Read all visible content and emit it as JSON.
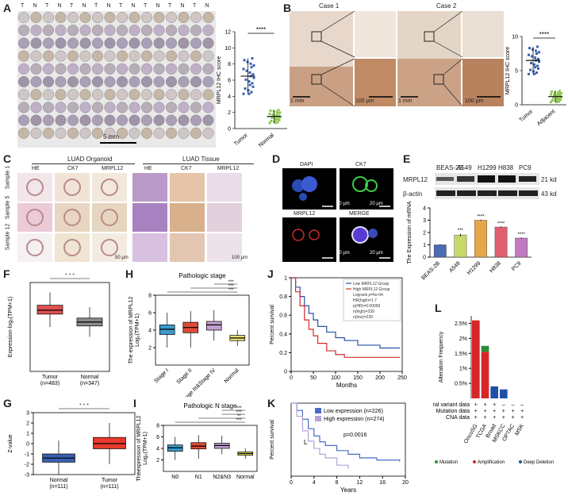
{
  "panel_letters": {
    "a": "A",
    "b": "B",
    "c": "C",
    "d": "D",
    "e": "E",
    "f": "F",
    "g": "G",
    "h": "H",
    "i": "I",
    "j": "J",
    "k": "K",
    "l": "L"
  },
  "panelA": {
    "tn_header": [
      "T",
      "N",
      "T",
      "N",
      "T",
      "N",
      "T",
      "N",
      "T",
      "N",
      "T",
      "N",
      "T",
      "N",
      "T",
      "N"
    ],
    "scale": "5 mm"
  },
  "panelB": {
    "case1": "Case 1",
    "case2": "Case 2",
    "scale_1mm": "1 mm",
    "scale_100um": "100 μm"
  },
  "panelC": {
    "group1": "LUAD Organoid",
    "group2": "LUAD Tissue",
    "cols": [
      "HE",
      "CK7",
      "MRPL12",
      "HE",
      "CK7",
      "MRPL12"
    ],
    "rows": [
      "Sample 1",
      "Sample 5",
      "Sample 12"
    ],
    "scale1": "50 μm",
    "scale2": "100 μm"
  },
  "panelD": {
    "dapi": "DAPI",
    "ck7": "CK7",
    "mrpl12": "MRPL12",
    "merge": "MERGE",
    "scale": "20 μm"
  },
  "panelE": {
    "cells": [
      "BEAS-2B",
      "A549",
      "H1299",
      "H838",
      "PC9"
    ],
    "row1": "MRPL12",
    "row2": "β-actin",
    "kd1": "21 kd",
    "kd2": "43 kd"
  },
  "panelL": {
    "rows": [
      "Structural variant data",
      "Mutation data",
      "CNA data"
    ],
    "legend_mutation": "Mutation",
    "legend_amp": "Amplification",
    "legend_del": "Deep Deletion",
    "colors": {
      "mutation": "#2e8b3a",
      "amp": "#d62728",
      "del": "#1f4fa8"
    }
  },
  "chart_data": [
    {
      "id": "A",
      "type": "scatter",
      "ylabel": "MRPL12 IHC score",
      "categories": [
        "Tumor",
        "Normal"
      ],
      "ylim": [
        0,
        12
      ],
      "yticks": [
        0,
        2,
        4,
        6,
        8,
        10,
        12
      ],
      "means": [
        6.5,
        1.5
      ],
      "sd": [
        2.2,
        0.8
      ],
      "sig": "****"
    },
    {
      "id": "B",
      "type": "scatter",
      "ylabel": "MRPL12 IHC score",
      "categories": [
        "Tumor",
        "Adjacent"
      ],
      "ylim": [
        0,
        10
      ],
      "yticks": [
        0,
        5,
        10
      ],
      "means": [
        6.5,
        1.2
      ],
      "sd": [
        2.0,
        0.8
      ],
      "sig": "****"
    },
    {
      "id": "E",
      "type": "bar",
      "ylabel": "The Expression of mRNA",
      "categories": [
        "BEAS-2B",
        "A549",
        "H1299",
        "H838",
        "PC9"
      ],
      "values": [
        1.0,
        1.8,
        3.0,
        2.45,
        1.55
      ],
      "errors": [
        0.05,
        0.12,
        0.05,
        0.05,
        0.05
      ],
      "sig": [
        "",
        "***",
        "****",
        "****",
        "****"
      ],
      "ylim": [
        0,
        4
      ],
      "yticks": [
        0,
        1,
        2,
        3,
        4
      ],
      "colors": [
        "#4a6cb3",
        "#c9d86a",
        "#e8a64a",
        "#e06070",
        "#c07bc0"
      ]
    },
    {
      "id": "F",
      "type": "box",
      "ylabel": "Expression-log₂(TPM+1)",
      "categories": [
        "Tumor\n(n=483)",
        "Normal\n(n=347)"
      ],
      "stats": [
        {
          "q1": 5.8,
          "med": 6.2,
          "q3": 6.7,
          "lo": 4.5,
          "hi": 8
        },
        {
          "q1": 4.6,
          "med": 5.0,
          "q3": 5.4,
          "lo": 3.5,
          "hi": 6.5
        }
      ],
      "colors": [
        "#e05050",
        "#8a8a8a"
      ],
      "ylim": [
        0,
        9
      ],
      "sig": "* * *"
    },
    {
      "id": "G",
      "type": "box",
      "ylabel": "Z-value",
      "categories": [
        "Normal\n(n=111)",
        "Tumor\n(n=111)"
      ],
      "stats": [
        {
          "q1": -1.8,
          "med": -1.4,
          "q3": -1.0,
          "lo": -3.0,
          "hi": 0.3
        },
        {
          "q1": -0.5,
          "med": 0.0,
          "q3": 0.6,
          "lo": -2.0,
          "hi": 2.0
        }
      ],
      "colors": [
        "#3a5fb0",
        "#e83a2a"
      ],
      "ylim": [
        -3,
        3
      ],
      "yticks": [
        -3,
        -2,
        -1,
        0,
        1,
        2,
        3
      ],
      "sig": "* * *"
    },
    {
      "id": "H",
      "type": "box",
      "title": "Pathologic stage",
      "ylabel": "The expression of MRPL12\nLog₂(TPM+1)",
      "categories": [
        "Stage I",
        "Stage II",
        "Stage III&Stage IV",
        "Normal"
      ],
      "stats": [
        {
          "q1": 3.5,
          "med": 4.1,
          "q3": 4.6,
          "lo": 2,
          "hi": 6
        },
        {
          "q1": 3.7,
          "med": 4.3,
          "q3": 4.9,
          "lo": 2,
          "hi": 6.2
        },
        {
          "q1": 4.0,
          "med": 4.6,
          "q3": 5.0,
          "lo": 2.8,
          "hi": 6.3
        },
        {
          "q1": 2.8,
          "med": 3.1,
          "q3": 3.4,
          "lo": 2.2,
          "hi": 4.0
        }
      ],
      "colors": [
        "#3a9ac9",
        "#e04a3a",
        "#c0a0d0",
        "#e8e070"
      ],
      "ylim": [
        0,
        8
      ],
      "yticks": [
        2,
        4,
        6,
        8
      ],
      "sig": [
        "***",
        "***",
        "***"
      ]
    },
    {
      "id": "I",
      "type": "box",
      "title": "Pathologic N stage",
      "ylabel": "Theexpression of MRPL12\nLog₂(TPM+1)",
      "categories": [
        "N0",
        "N1",
        "N2&N3",
        "Normal"
      ],
      "stats": [
        {
          "q1": 3.5,
          "med": 4.1,
          "q3": 4.6,
          "lo": 2,
          "hi": 6
        },
        {
          "q1": 3.9,
          "med": 4.4,
          "q3": 5.0,
          "lo": 2.2,
          "hi": 6.3
        },
        {
          "q1": 4.0,
          "med": 4.5,
          "q3": 4.9,
          "lo": 3,
          "hi": 6.2
        },
        {
          "q1": 2.8,
          "med": 3.1,
          "q3": 3.4,
          "lo": 2.2,
          "hi": 4.0
        }
      ],
      "colors": [
        "#3a9ac9",
        "#e04a3a",
        "#c0a0d0",
        "#e8e070"
      ],
      "ylim": [
        0,
        8
      ],
      "yticks": [
        2,
        4,
        6,
        8
      ],
      "sig": [
        "***",
        "**",
        "***",
        "***"
      ]
    },
    {
      "id": "J",
      "type": "line",
      "xlabel": "Months",
      "ylabel": "Percent survival",
      "xlim": [
        0,
        250
      ],
      "ylim": [
        0,
        1
      ],
      "xticks": [
        0,
        50,
        100,
        150,
        200,
        250
      ],
      "yticks": [
        0,
        0.2,
        0.4,
        0.6,
        0.8,
        1.0
      ],
      "legend": [
        "Low MRPL12 Group",
        "High MRPL12 Group",
        "Logrank p=5e-04",
        "HR(high)=1.7",
        "p(HR)=0.00059",
        "n(high)=239",
        "n(low)=239"
      ],
      "series": [
        {
          "name": "Low MRPL12 Group",
          "color": "#2a4fa8",
          "x": [
            0,
            10,
            20,
            30,
            40,
            50,
            60,
            80,
            100,
            120,
            150,
            200,
            245
          ],
          "y": [
            1,
            0.9,
            0.8,
            0.7,
            0.62,
            0.55,
            0.48,
            0.42,
            0.36,
            0.33,
            0.28,
            0.25,
            0.25
          ]
        },
        {
          "name": "High MRPL12 Group",
          "color": "#d62a2a",
          "x": [
            0,
            10,
            20,
            30,
            40,
            50,
            60,
            80,
            100,
            120,
            150,
            200,
            245
          ],
          "y": [
            1,
            0.85,
            0.7,
            0.55,
            0.45,
            0.38,
            0.3,
            0.22,
            0.18,
            0.15,
            0.15,
            0.15,
            0.15
          ]
        }
      ]
    },
    {
      "id": "K",
      "type": "line",
      "xlabel": "Years",
      "ylabel": "Percent survival",
      "xlim": [
        0,
        20
      ],
      "ylim": [
        0,
        1
      ],
      "xticks": [
        0,
        4,
        8,
        12,
        16,
        20
      ],
      "legend": [
        "Low expression (n=226)",
        "High expression (n=274)",
        "p=0.0016"
      ],
      "annot": "L",
      "series": [
        {
          "name": "Low expression (n=226)",
          "color": "#4a6cc8",
          "x": [
            0,
            1,
            2,
            3,
            4,
            5,
            6,
            8,
            10,
            12,
            15,
            19
          ],
          "y": [
            1,
            0.9,
            0.78,
            0.65,
            0.55,
            0.47,
            0.42,
            0.35,
            0.3,
            0.25,
            0.22,
            0.2
          ]
        },
        {
          "name": "High expression (n=274)",
          "color": "#b8a0d8",
          "x": [
            0,
            1,
            2,
            3,
            4,
            5,
            6,
            8,
            10
          ],
          "y": [
            1,
            0.82,
            0.62,
            0.48,
            0.38,
            0.3,
            0.25,
            0.15,
            0.1
          ]
        }
      ]
    },
    {
      "id": "L",
      "type": "bar",
      "ylabel": "Alteration Frequency",
      "categories": [
        "OncoSG",
        "TCGA",
        "Broad",
        "MSKCC",
        "OPTAC",
        "MSK"
      ],
      "ylim": [
        0,
        2.75
      ],
      "yticks": [
        0.5,
        1,
        1.5,
        2,
        2.5
      ],
      "ytick_labels": [
        "0.5%",
        "1%",
        "1.5%",
        "2%",
        "2.5%"
      ],
      "series": [
        {
          "name": "Mutation",
          "values": [
            0,
            0.2,
            0,
            0,
            0,
            0
          ]
        },
        {
          "name": "Amplification",
          "values": [
            2.6,
            1.55,
            0,
            0,
            0,
            0
          ]
        },
        {
          "name": "Deep Deletion",
          "values": [
            0,
            0,
            0.4,
            0.3,
            0,
            0
          ]
        }
      ]
    }
  ]
}
